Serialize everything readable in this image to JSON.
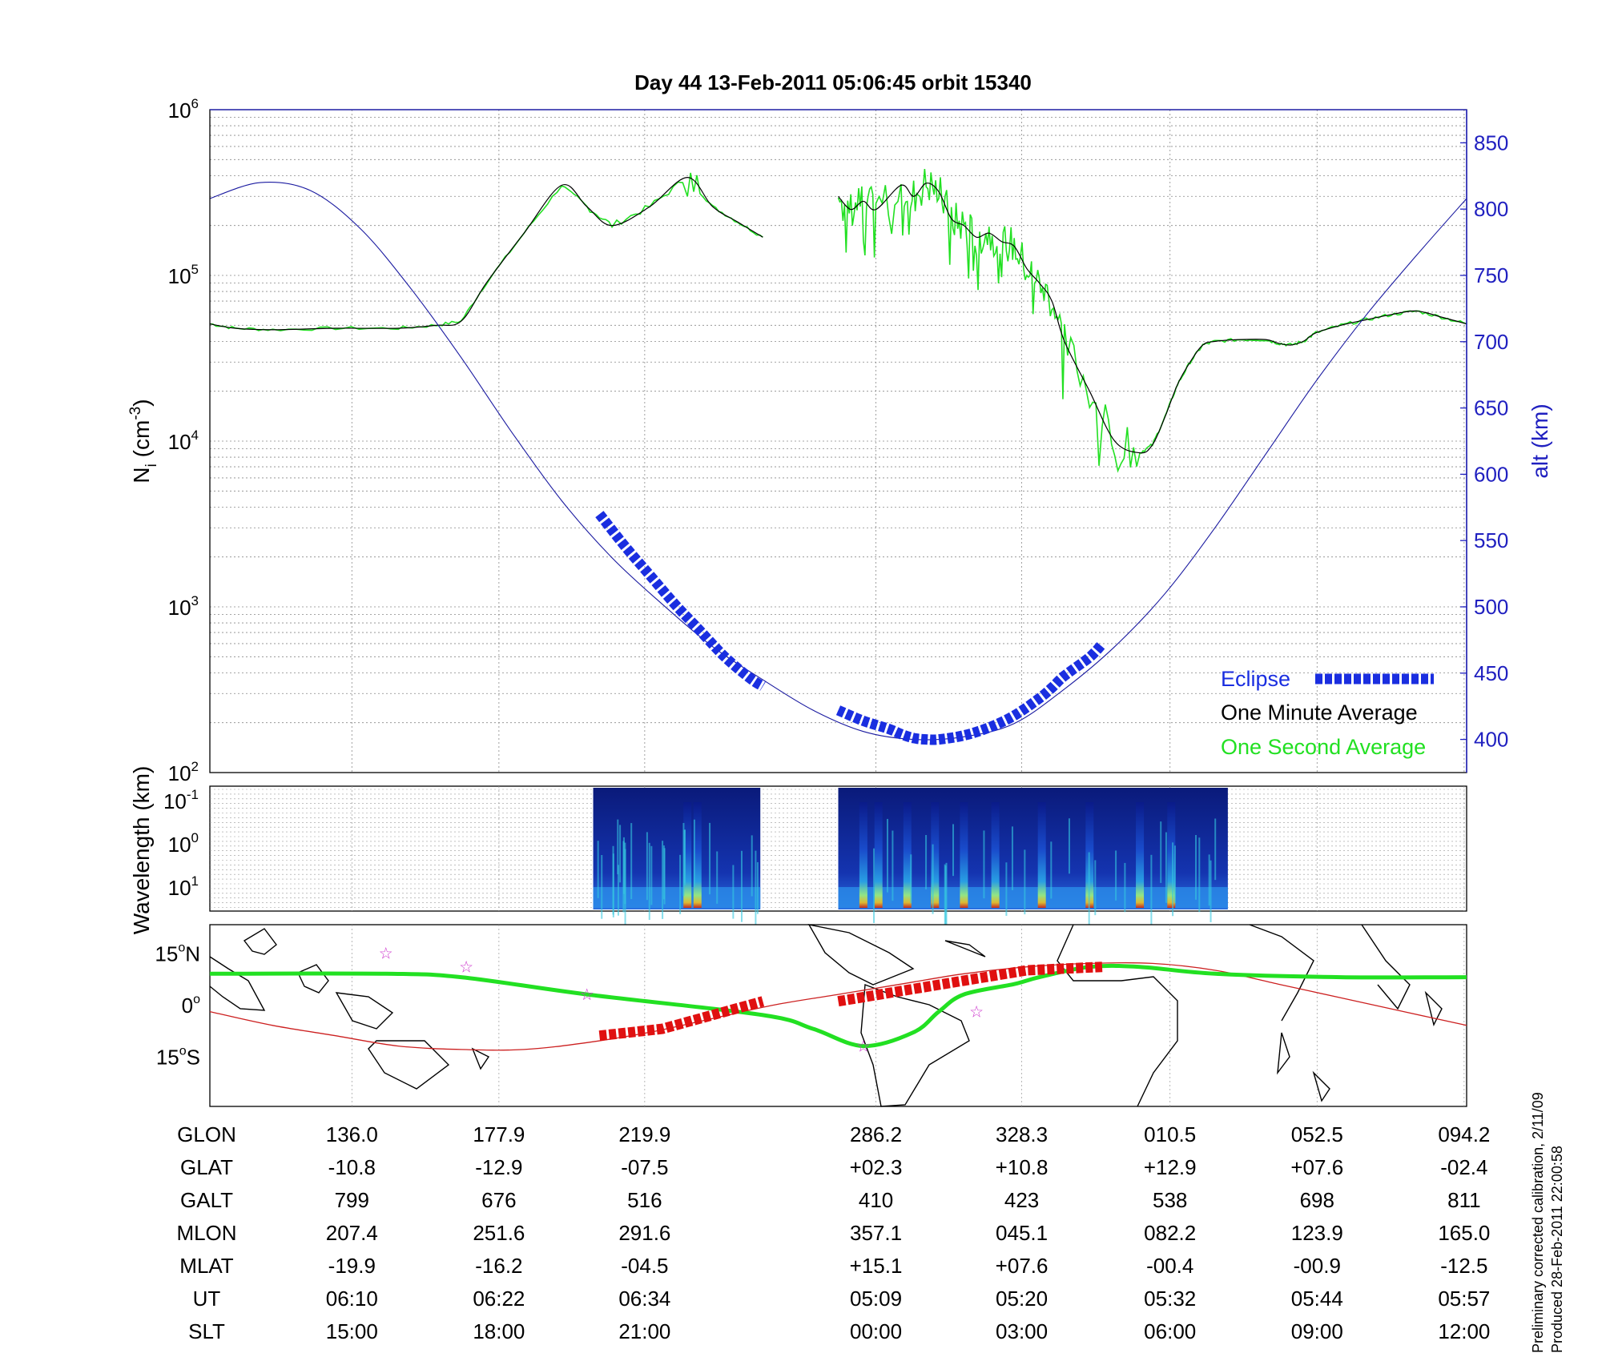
{
  "title": "Day 44  13-Feb-2011 05:06:45   orbit 15340",
  "footer_note": [
    "Preliminary corrected calibration, 2/11/09",
    "Produced 28-Feb-2011 22:00:58"
  ],
  "colors": {
    "eclipse": "#1a2ee0",
    "one_minute": "#000000",
    "one_second": "#22e022",
    "altitude": "#1a1aa0",
    "ground_track": "#22e022",
    "orbit_track": "#cc2020",
    "eclipse_map": "#e01010",
    "right_axis": "#2020c0"
  },
  "chart_data": [
    {
      "type": "line",
      "panel": "ion density and altitude",
      "title": "Day 44  13-Feb-2011 05:06:45   orbit 15340",
      "ylabel": "N_i (cm^-3)",
      "ylabel_base": "N",
      "ylabel_sub": "i",
      "ylabel_unit_pre": " (cm",
      "ylabel_unit_exp": "-3",
      "ylabel_unit_post": ")",
      "yscale": "log",
      "ylim": [
        100,
        1000000
      ],
      "y_ticks": [
        {
          "base": "10",
          "exp": "2"
        },
        {
          "base": "10",
          "exp": "3"
        },
        {
          "base": "10",
          "exp": "4"
        },
        {
          "base": "10",
          "exp": "5"
        },
        {
          "base": "10",
          "exp": "6"
        }
      ],
      "y2label": "alt (km)",
      "y2lim": [
        375,
        875
      ],
      "y2_ticks": [
        "400",
        "450",
        "500",
        "550",
        "600",
        "650",
        "700",
        "750",
        "800",
        "850"
      ],
      "x_range": [
        0,
        100
      ],
      "grid": true,
      "legend": {
        "position": "bottom-right",
        "entries": [
          "Eclipse",
          "One Minute Average",
          "One Second Average"
        ]
      },
      "series": [
        {
          "name": "One Minute Average",
          "x": [
            0,
            2,
            5,
            10,
            15,
            18,
            20,
            22,
            25,
            28,
            30,
            32,
            35,
            38,
            40,
            42,
            44
          ],
          "y": [
            51000,
            48000,
            47000,
            48000,
            48000,
            50000,
            53000,
            90000,
            180000,
            350000,
            260000,
            200000,
            260000,
            390000,
            260000,
            210000,
            170000
          ]
        },
        {
          "name": "One Minute Average",
          "x": [
            50,
            51,
            52,
            53,
            55,
            56,
            57,
            58,
            59,
            60,
            61,
            62,
            63,
            64,
            65,
            66,
            67,
            68,
            70,
            72,
            74,
            75,
            76,
            77,
            78,
            79,
            80,
            82,
            84,
            85,
            86,
            87,
            88,
            90,
            92,
            94,
            96,
            98,
            100
          ],
          "y": [
            300000,
            250000,
            280000,
            250000,
            350000,
            300000,
            360000,
            320000,
            220000,
            200000,
            170000,
            180000,
            160000,
            150000,
            110000,
            90000,
            70000,
            40000,
            20000,
            10000,
            8500,
            9500,
            14000,
            22000,
            30000,
            38000,
            40000,
            41000,
            41000,
            39000,
            38000,
            40000,
            45000,
            50000,
            54000,
            58000,
            61000,
            56000,
            51000
          ]
        },
        {
          "name": "Eclipse",
          "x": [
            31,
            33,
            35,
            37,
            39,
            41,
            43,
            44
          ],
          "y": [
            570,
            546,
            524,
            502,
            482,
            462,
            446,
            440
          ]
        },
        {
          "name": "Eclipse",
          "x": [
            50,
            52,
            54,
            55,
            56,
            57,
            58,
            60,
            62,
            64,
            66,
            67,
            68,
            70,
            71
          ],
          "y": [
            422,
            414,
            408,
            404,
            401,
            400,
            400,
            403,
            409,
            418,
            431,
            439,
            448,
            462,
            472
          ]
        },
        {
          "name": "alt",
          "x": [
            0,
            4,
            8,
            12,
            16,
            20,
            24,
            28,
            32,
            36,
            40,
            44,
            48,
            52,
            56,
            60,
            64,
            68,
            72,
            76,
            80,
            84,
            88,
            92,
            96,
            100
          ],
          "y": [
            808,
            820,
            814,
            785,
            740,
            688,
            632,
            580,
            537,
            502,
            470,
            445,
            422,
            406,
            400,
            402,
            412,
            438,
            470,
            510,
            560,
            615,
            670,
            720,
            765,
            808
          ]
        }
      ]
    },
    {
      "type": "heatmap",
      "panel": "spectrogram",
      "ylabel": "Wavelength (km)",
      "ylabel_text": "Wavelength (km)",
      "y_ticks": [
        {
          "base": "10",
          "exp": "-1"
        },
        {
          "base": "10",
          "exp": "0"
        },
        {
          "base": "10",
          "exp": "1"
        }
      ],
      "data_spans": [
        [
          30.5,
          43.8
        ],
        [
          50.0,
          81.0
        ]
      ],
      "intensity_peaks": [
        38.0,
        38.8,
        52.0,
        53.2,
        55.5,
        57.7,
        60.0,
        62.5,
        66.2,
        70.0,
        74.0,
        76.5
      ]
    },
    {
      "type": "line",
      "panel": "map",
      "y_ticks": [
        {
          "deg": "15",
          "hemi": "N"
        },
        {
          "deg": "0",
          "hemi": ""
        },
        {
          "deg": "15",
          "hemi": "S"
        }
      ],
      "series": [
        {
          "name": "ground track",
          "x": [
            0,
            14,
            20,
            30,
            44,
            48,
            52,
            56,
            58,
            60,
            64,
            66,
            70,
            74,
            80,
            90,
            100
          ],
          "y": [
            9,
            9,
            8,
            3,
            -3,
            -7,
            -12,
            -8,
            -2,
            3,
            6,
            8,
            11,
            11,
            9,
            8,
            8
          ]
        },
        {
          "name": "orbit track",
          "x": [
            0,
            5,
            10,
            15,
            20,
            25,
            30,
            35,
            40,
            45,
            50,
            55,
            60,
            65,
            70,
            75,
            80,
            85,
            90,
            95,
            100
          ],
          "y": [
            -2,
            -6,
            -9,
            -12,
            -13,
            -13,
            -11,
            -8,
            -4,
            0,
            3,
            6,
            9,
            11,
            12,
            12,
            10,
            6,
            2,
            -2,
            -6
          ]
        },
        {
          "name": "eclipse",
          "x": [
            31,
            36,
            40,
            44,
            50,
            55,
            60,
            65,
            71
          ],
          "y": [
            -9,
            -7,
            -3,
            1,
            1,
            4,
            7,
            10,
            11
          ]
        }
      ],
      "stars": [
        {
          "x": 14,
          "y": 15
        },
        {
          "x": 20.4,
          "y": 11
        },
        {
          "x": 30,
          "y": 3
        },
        {
          "x": 52,
          "y": -12
        },
        {
          "x": 61,
          "y": -2
        }
      ]
    },
    {
      "type": "table",
      "panel": "orbit parameters",
      "row_labels": [
        "GLON",
        "GLAT",
        "GALT",
        "MLON",
        "MLAT",
        "UT",
        "SLT"
      ],
      "columns": [
        {
          "x": 11.3,
          "values": [
            "136.0",
            "-10.8",
            "799",
            "207.4",
            "-19.9",
            "06:10",
            "15:00"
          ]
        },
        {
          "x": 23.0,
          "values": [
            "177.9",
            "-12.9",
            "676",
            "251.6",
            "-16.2",
            "06:22",
            "18:00"
          ]
        },
        {
          "x": 34.6,
          "values": [
            "219.9",
            "-07.5",
            "516",
            "291.6",
            "-04.5",
            "06:34",
            "21:00"
          ]
        },
        {
          "x": 53.0,
          "values": [
            "286.2",
            "+02.3",
            "410",
            "357.1",
            "+15.1",
            "05:09",
            "00:00"
          ]
        },
        {
          "x": 64.6,
          "values": [
            "328.3",
            "+10.8",
            "423",
            "045.1",
            "+07.6",
            "05:20",
            "03:00"
          ]
        },
        {
          "x": 76.4,
          "values": [
            "010.5",
            "+12.9",
            "538",
            "082.2",
            "-00.4",
            "05:32",
            "06:00"
          ]
        },
        {
          "x": 88.1,
          "values": [
            "052.5",
            "+07.6",
            "698",
            "123.9",
            "-00.9",
            "05:44",
            "09:00"
          ]
        },
        {
          "x": 99.8,
          "values": [
            "094.2",
            "-02.4",
            "811",
            "165.0",
            "-12.5",
            "05:57",
            "12:00"
          ]
        }
      ]
    }
  ]
}
